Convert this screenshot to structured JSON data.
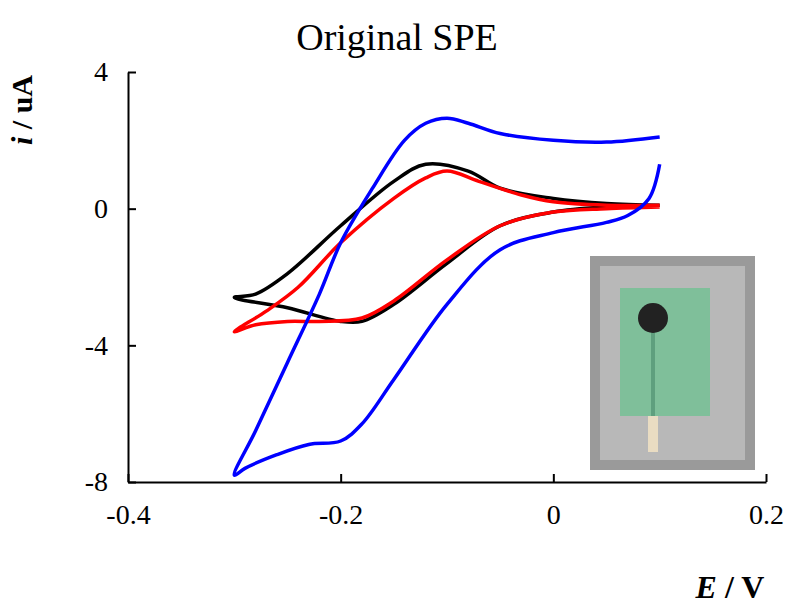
{
  "chart_data": {
    "type": "line",
    "title": "Original SPE",
    "x_label": "E / V",
    "y_label": "i / uA",
    "xlim": [
      -0.4,
      0.2
    ],
    "ylim": [
      -8,
      4
    ],
    "xticks": [
      -0.4,
      -0.2,
      0,
      0.2
    ],
    "yticks": [
      -8,
      -4,
      0,
      4
    ],
    "grid": false,
    "series": [
      {
        "color": "#000000",
        "x": [
          0.1,
          0.05,
          0,
          -0.05,
          -0.1,
          -0.15,
          -0.18,
          -0.2,
          -0.25,
          -0.3,
          -0.28,
          -0.25,
          -0.2,
          -0.15,
          -0.12,
          -0.08,
          -0.05,
          0,
          0.05,
          0.1
        ],
        "values": [
          0.1,
          0.05,
          -0.1,
          -0.5,
          -1.6,
          -2.8,
          -3.3,
          -3.3,
          -2.9,
          -2.6,
          -2.5,
          -1.9,
          -0.5,
          0.8,
          1.3,
          1.1,
          0.6,
          0.3,
          0.15,
          0.1
        ]
      },
      {
        "color": "#ff0000",
        "x": [
          0.1,
          0.05,
          0,
          -0.05,
          -0.1,
          -0.15,
          -0.18,
          -0.22,
          -0.25,
          -0.28,
          -0.3,
          -0.27,
          -0.24,
          -0.2,
          -0.15,
          -0.12,
          -0.1,
          -0.07,
          -0.03,
          0,
          0.05,
          0.1
        ],
        "values": [
          0.05,
          0.0,
          -0.1,
          -0.5,
          -1.5,
          -2.7,
          -3.2,
          -3.3,
          -3.3,
          -3.4,
          -3.6,
          -3.0,
          -2.3,
          -1.0,
          0.3,
          0.9,
          1.1,
          0.8,
          0.4,
          0.2,
          0.1,
          0.1
        ]
      },
      {
        "color": "#0000ff",
        "x": [
          0.1,
          0.09,
          0.07,
          0.05,
          0,
          -0.05,
          -0.1,
          -0.15,
          -0.18,
          -0.2,
          -0.23,
          -0.26,
          -0.29,
          -0.3,
          -0.28,
          -0.25,
          -0.22,
          -0.2,
          -0.17,
          -0.14,
          -0.12,
          -0.1,
          -0.08,
          -0.05,
          0,
          0.05,
          0.1
        ],
        "values": [
          1.3,
          0.3,
          -0.2,
          -0.4,
          -0.7,
          -1.2,
          -2.8,
          -5.0,
          -6.3,
          -6.8,
          -6.9,
          -7.2,
          -7.6,
          -7.8,
          -6.5,
          -4.5,
          -2.5,
          -1.0,
          0.6,
          2.0,
          2.5,
          2.65,
          2.5,
          2.2,
          2.0,
          1.95,
          2.1
        ]
      }
    ]
  }
}
